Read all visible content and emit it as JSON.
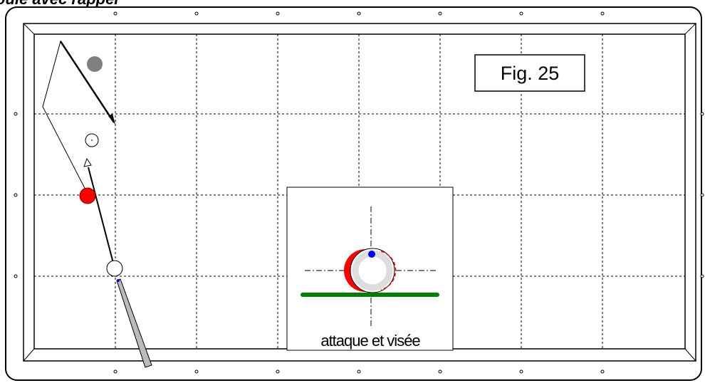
{
  "title": "oule avec rappel",
  "figure_label": "Fig. 25",
  "inset_caption": "attaque et visée"
}
